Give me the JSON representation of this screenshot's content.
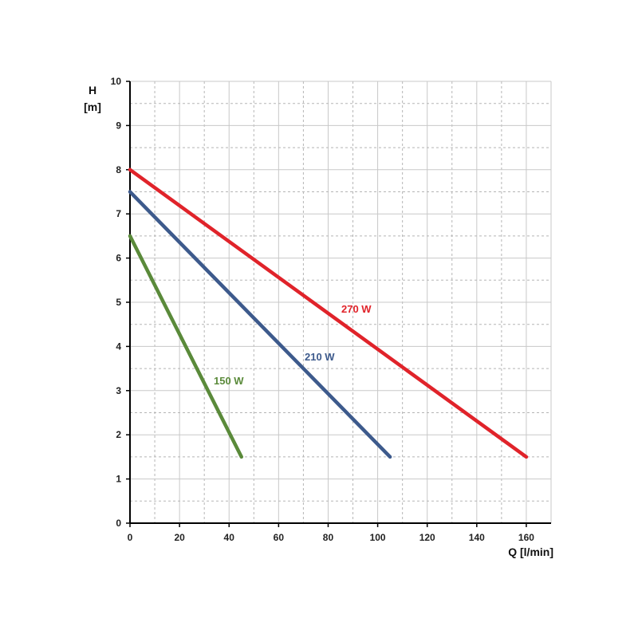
{
  "chart_data": {
    "type": "line",
    "xlabel": "Q [l/min]",
    "ylabel_line1": "H",
    "ylabel_line2": "[m]",
    "xlim": [
      0,
      170
    ],
    "ylim": [
      0,
      10
    ],
    "x_ticks": [
      0,
      20,
      40,
      60,
      80,
      100,
      120,
      140,
      160
    ],
    "y_ticks": [
      0,
      1,
      2,
      3,
      4,
      5,
      6,
      7,
      8,
      9,
      10
    ],
    "grid": true,
    "series": [
      {
        "name": "150 W",
        "color": "#5a8a3a",
        "x": [
          0,
          45
        ],
        "y": [
          6.5,
          1.5
        ]
      },
      {
        "name": "210 W",
        "color": "#3d5a8c",
        "x": [
          0,
          105
        ],
        "y": [
          7.5,
          1.5
        ]
      },
      {
        "name": "270 W",
        "color": "#e0232a",
        "x": [
          0,
          160
        ],
        "y": [
          8.0,
          1.5
        ]
      }
    ]
  }
}
